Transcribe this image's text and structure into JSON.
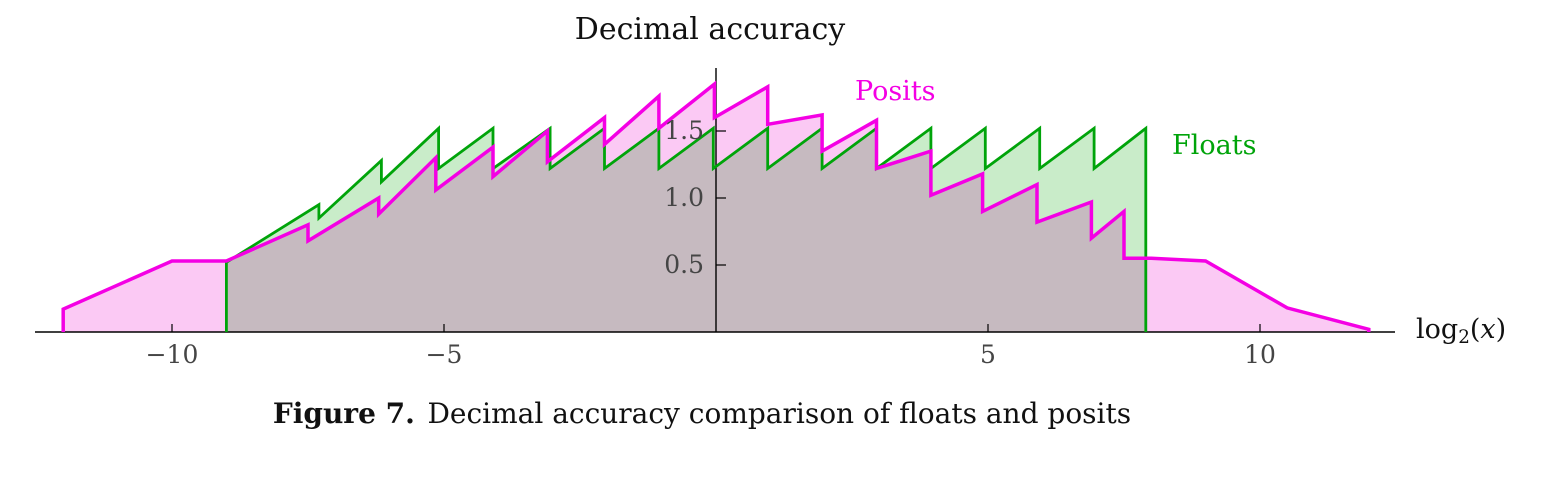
{
  "chart_data": {
    "type": "line",
    "title": "Decimal accuracy",
    "xlabel": "log2(x)",
    "xlabel_parts": {
      "log": "log",
      "sub": "2",
      "open": "(",
      "var": "x",
      "close": ")"
    },
    "ylabel": "",
    "legend": {
      "posits": "Posits",
      "floats": "Floats",
      "position": "inside-top-right"
    },
    "xlim": [
      -12.6,
      12.8
    ],
    "ylim": [
      0,
      1.95
    ],
    "grid": false,
    "xticks": [
      {
        "v": -10,
        "label": "−10"
      },
      {
        "v": -5,
        "label": "−5"
      },
      {
        "v": 5,
        "label": "5"
      },
      {
        "v": 10,
        "label": "10"
      }
    ],
    "yticks": [
      {
        "v": 0.5,
        "label": "0.5"
      },
      {
        "v": 1.0,
        "label": "1.0"
      },
      {
        "v": 1.5,
        "label": "1.5"
      }
    ],
    "series": [
      {
        "name": "Floats",
        "color": "#00a40a",
        "fill": "#c9ecc9",
        "width": 2.8,
        "points": [
          [
            -9,
            0
          ],
          [
            -9,
            0.52
          ],
          [
            -7.3,
            0.95
          ],
          [
            -7.3,
            0.85
          ],
          [
            -6.15,
            1.28
          ],
          [
            -6.15,
            1.12
          ],
          [
            -5.1,
            1.52
          ],
          [
            -5.1,
            1.22
          ],
          [
            -4.1,
            1.52
          ],
          [
            -4.1,
            1.22
          ],
          [
            -3.05,
            1.52
          ],
          [
            -3.05,
            1.22
          ],
          [
            -2.05,
            1.52
          ],
          [
            -2.05,
            1.22
          ],
          [
            -1.05,
            1.52
          ],
          [
            -1.05,
            1.22
          ],
          [
            -0.05,
            1.52
          ],
          [
            -0.05,
            1.22
          ],
          [
            0.95,
            1.52
          ],
          [
            0.95,
            1.22
          ],
          [
            1.95,
            1.52
          ],
          [
            1.95,
            1.22
          ],
          [
            2.95,
            1.52
          ],
          [
            2.95,
            1.22
          ],
          [
            3.95,
            1.52
          ],
          [
            3.95,
            1.22
          ],
          [
            4.95,
            1.52
          ],
          [
            4.95,
            1.22
          ],
          [
            5.95,
            1.52
          ],
          [
            5.95,
            1.22
          ],
          [
            6.95,
            1.52
          ],
          [
            6.95,
            1.22
          ],
          [
            7.9,
            1.52
          ],
          [
            7.9,
            0
          ]
        ]
      },
      {
        "name": "Posits",
        "color": "#f400e4",
        "fill": "#fbc9f4",
        "width": 3.5,
        "points": [
          [
            -12,
            0
          ],
          [
            -12,
            0.17
          ],
          [
            -10,
            0.53
          ],
          [
            -9,
            0.53
          ],
          [
            -7.5,
            0.8
          ],
          [
            -7.5,
            0.68
          ],
          [
            -6.2,
            1.0
          ],
          [
            -6.2,
            0.88
          ],
          [
            -5.15,
            1.3
          ],
          [
            -5.15,
            1.06
          ],
          [
            -4.1,
            1.38
          ],
          [
            -4.1,
            1.16
          ],
          [
            -3.1,
            1.5
          ],
          [
            -3.1,
            1.27
          ],
          [
            -2.05,
            1.6
          ],
          [
            -2.05,
            1.4
          ],
          [
            -1.05,
            1.76
          ],
          [
            -1.05,
            1.52
          ],
          [
            -0.03,
            1.85
          ],
          [
            -0.03,
            1.6
          ],
          [
            0.95,
            1.83
          ],
          [
            0.95,
            1.55
          ],
          [
            1.95,
            1.62
          ],
          [
            1.95,
            1.35
          ],
          [
            2.95,
            1.58
          ],
          [
            2.95,
            1.22
          ],
          [
            3.95,
            1.35
          ],
          [
            3.95,
            1.02
          ],
          [
            4.9,
            1.18
          ],
          [
            4.9,
            0.9
          ],
          [
            5.9,
            1.1
          ],
          [
            5.9,
            0.82
          ],
          [
            6.9,
            0.97
          ],
          [
            6.9,
            0.7
          ],
          [
            7.5,
            0.9
          ],
          [
            7.5,
            0.55
          ],
          [
            8.0,
            0.55
          ],
          [
            9.0,
            0.53
          ],
          [
            10.5,
            0.18
          ],
          [
            12,
            0.02
          ],
          [
            12,
            0
          ]
        ]
      }
    ]
  },
  "caption": {
    "label": "Figure 7.",
    "text": "Decimal accuracy comparison of floats and posits"
  }
}
